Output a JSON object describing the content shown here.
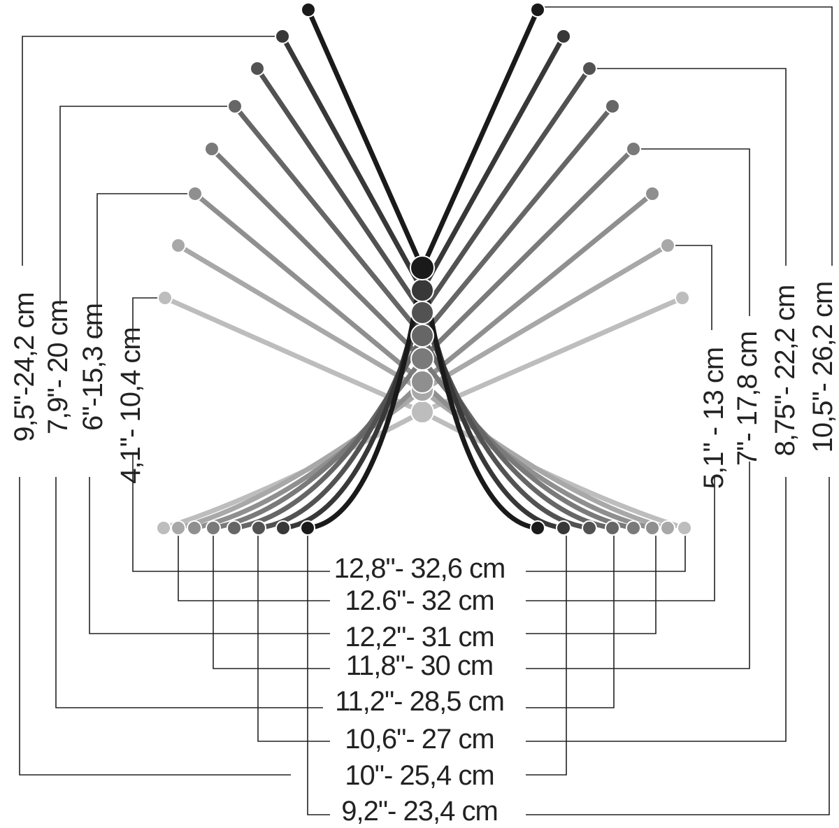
{
  "colors": {
    "background": "#ffffff",
    "leader_line": "#222222",
    "text": "#222222",
    "shades": [
      "#1a1a1a",
      "#383838",
      "#525252",
      "#666666",
      "#7a7a7a",
      "#8f8f8f",
      "#a8a8a8",
      "#bdbdbd"
    ]
  },
  "rows": [
    {
      "height": "9,5\"-24,2 cm",
      "width": "12,8\"- 32,6 cm"
    },
    {
      "height": "7,9\"- 20 cm",
      "width": "12.6\"- 32 cm"
    },
    {
      "height": "6\"-15,3 cm",
      "width": "12,2\"- 31 cm"
    },
    {
      "height": "4,1\"- 10,4 cm",
      "width": "11,8\"- 30 cm"
    },
    {
      "height": "5,1\" - 13 cm",
      "width": "11,2\"- 28,5 cm"
    },
    {
      "height": "7\"- 17,8 cm",
      "width": "10,6\"- 27 cm"
    },
    {
      "height": "8,75\"- 22,2 cm",
      "width": "10\"- 25,4 cm"
    },
    {
      "height": "10,5\"- 26,2 cm",
      "width": "9,2\"- 23,4 cm"
    }
  ]
}
